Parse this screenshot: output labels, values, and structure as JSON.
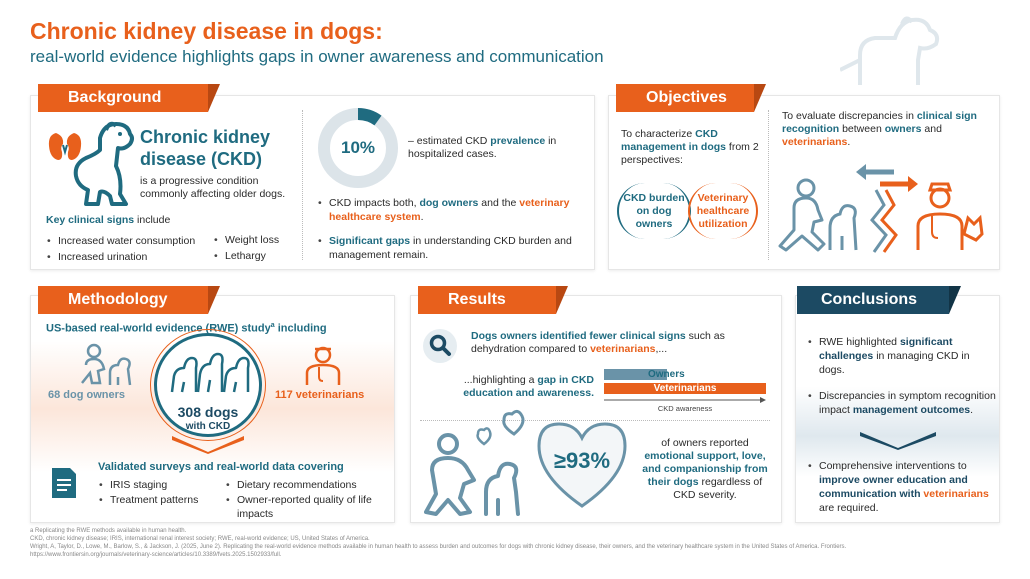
{
  "header": {
    "title": "Chronic kidney disease in dogs:",
    "subtitle": "real-world evidence highlights gaps in owner awareness and communication"
  },
  "background": {
    "tab": "Background",
    "ckd_title_1": "Chronic kidney",
    "ckd_title_2": "disease (CKD)",
    "ckd_desc": "is a progressive condition commonly affecting older dogs.",
    "signs_heading_bold": "Key clinical signs",
    "signs_heading_rest": " include",
    "signs_left": [
      "Increased water consumption",
      "Increased urination"
    ],
    "signs_right": [
      "Weight loss",
      "Lethargy"
    ],
    "prevalence_value": "10%",
    "prevalence_fraction": 0.1,
    "prevalence_text_pre": "– estimated CKD ",
    "prevalence_text_bold": "prevalence",
    "prevalence_text_post": " in hospitalized cases.",
    "impact_pre": "CKD impacts both, ",
    "impact_owners": "dog owners",
    "impact_mid": " and the ",
    "impact_vet": "veterinary healthcare system",
    "impact_end": ".",
    "gaps_bold": "Significant gaps",
    "gaps_rest": " in understanding CKD burden and management remain."
  },
  "objectives": {
    "tab": "Objectives",
    "left_pre": "To characterize ",
    "left_bold": "CKD management in dogs",
    "left_post": " from 2 perspectives:",
    "perspective_1": "CKD burden on dog owners",
    "perspective_2": "Veterinary healthcare utilization",
    "right_pre": "To evaluate discrepancies in ",
    "right_bold1": "clinical sign recognition",
    "right_mid": " between ",
    "right_owners": "owners",
    "right_and": " and ",
    "right_vets": "veterinarians",
    "right_end": "."
  },
  "methodology": {
    "tab": "Methodology",
    "study_pre": "US-based real-world evidence (RWE) study",
    "study_sup": "a",
    "study_post": " including",
    "owners": "68 dog owners",
    "dogs_num": "308 dogs",
    "dogs_label": "with CKD",
    "vets": "117 veterinarians",
    "surveys_heading": "Validated surveys and real-world data covering",
    "items_left": [
      "IRIS staging",
      "Treatment patterns"
    ],
    "items_right": [
      "Dietary recommendations",
      "Owner-reported quality of life impacts"
    ]
  },
  "results": {
    "tab": "Results",
    "finding_1_bold": "Dogs owners identified fewer clinical signs",
    "finding_1_rest": " such as dehydration compared to ",
    "finding_1_vets": "veterinarians",
    "finding_1_end": ",...",
    "finding_2_pre": "...highlighting a ",
    "finding_2_bold": "gap in CKD education and awareness.",
    "bar_owners": "Owners",
    "bar_vets": "Veterinarians",
    "bar_axis": "CKD awareness",
    "bar_owners_fraction": 0.39,
    "bar_vets_fraction": 1.0,
    "emotional_value": "≥93%",
    "emotional_pre": "of owners reported ",
    "emotional_bold": "emotional support, love, and companionship from their dogs",
    "emotional_post": " regardless of CKD severity."
  },
  "conclusions": {
    "tab": "Conclusions",
    "c1_pre": "RWE highlighted ",
    "c1_bold": "significant challenges",
    "c1_post": " in managing CKD in dogs.",
    "c2_pre": "Discrepancies in symptom recognition impact ",
    "c2_bold": "management outcomes",
    "c2_post": ".",
    "c3_pre": "Comprehensive interventions to ",
    "c3_bold1": "improve owner education and communication with ",
    "c3_vets": "veterinarians",
    "c3_post": " are required."
  },
  "footer": {
    "line1": "a Replicating the RWE methods available in human health.",
    "line2": "CKD, chronic kidney disease; IRIS, international renal interest society; RWE, real-world evidence; US, United States of America.",
    "line3": "Wright, A, Taylor, D., Lowe, M., Barlow, S., & Jackson, J. (2025, June 2). Replicating the real-world evidence methods available in human health to assess burden and outcomes for dogs with chronic kidney disease, their owners, and the veterinary healthcare system in the United States of America. Frontiers.",
    "line4": "https://www.frontiersin.org/journals/veterinary-science/articles/10.3389/fvets.2025.1502933/full."
  },
  "colors": {
    "orange": "#e8601c",
    "teal": "#1f6b80",
    "navy": "#1c4a63",
    "light_blue": "#6a93a8"
  },
  "icons": [
    "kidney-icon",
    "dog-icon",
    "person-with-dog-icon",
    "veterinarian-icon",
    "magnifier-icon",
    "document-icon",
    "heart-icon",
    "arrows-icon",
    "three-dogs-icon"
  ]
}
